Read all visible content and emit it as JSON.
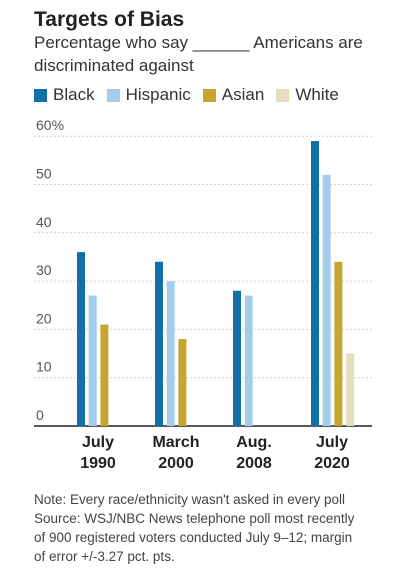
{
  "title": "Targets of Bias",
  "subtitle": "Percentage who say ______ Americans are discriminated against",
  "colors": {
    "Black": "#1170a6",
    "Hispanic": "#a4cdec",
    "Asian": "#c8a531",
    "White": "#e6dcc0"
  },
  "chart_data": {
    "type": "bar",
    "categories": [
      [
        "July",
        "1990"
      ],
      [
        "March",
        "2000"
      ],
      [
        "Aug.",
        "2008"
      ],
      [
        "July",
        "2020"
      ]
    ],
    "series": [
      {
        "name": "Black",
        "values": [
          36,
          34,
          28,
          59
        ]
      },
      {
        "name": "Hispanic",
        "values": [
          27,
          30,
          27,
          52
        ]
      },
      {
        "name": "Asian",
        "values": [
          21,
          18,
          null,
          34
        ]
      },
      {
        "name": "White",
        "values": [
          null,
          null,
          null,
          15
        ]
      }
    ],
    "yticks": [
      {
        "value": 0,
        "label": "0"
      },
      {
        "value": 10,
        "label": "10"
      },
      {
        "value": 20,
        "label": "20"
      },
      {
        "value": 30,
        "label": "30"
      },
      {
        "value": 40,
        "label": "40"
      },
      {
        "value": 50,
        "label": "50"
      },
      {
        "value": 60,
        "label": "60%"
      }
    ],
    "ylim": [
      0,
      60
    ],
    "grid": true,
    "legend": "top-left"
  },
  "notes": {
    "note": "Note: Every race/ethnicity wasn't asked in every poll",
    "source_line1": "Source: WSJ/NBC News telephone poll most recently",
    "source_line2": "of 900 registered voters conducted July 9–12; margin",
    "source_line3": "of error +/-3.27 pct. pts."
  }
}
